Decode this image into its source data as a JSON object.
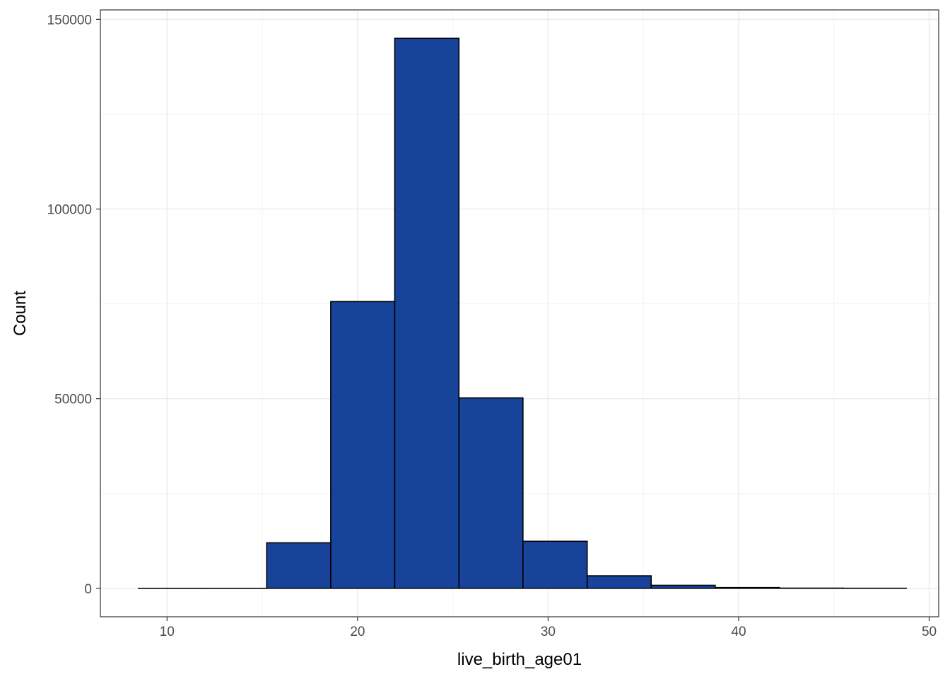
{
  "chart_data": {
    "type": "bar",
    "title": "",
    "xlabel": "live_birth_age01",
    "ylabel": "Count",
    "xlim": [
      6.5,
      50.5
    ],
    "ylim": [
      -7500,
      152500
    ],
    "x_ticks": [
      10,
      20,
      30,
      40,
      50
    ],
    "y_ticks": [
      0,
      50000,
      100000,
      150000
    ],
    "x_tick_labels": [
      "10",
      "20",
      "30",
      "40",
      "50"
    ],
    "y_tick_labels": [
      "0",
      "50000",
      "100000",
      "150000"
    ],
    "grid": true,
    "legend": "none",
    "fill_color": "#17439b",
    "edge_color": "#000000",
    "bins": [
      {
        "x0": 8.5,
        "x1": 11.86,
        "count": 0
      },
      {
        "x0": 11.86,
        "x1": 15.23,
        "count": 0
      },
      {
        "x0": 15.23,
        "x1": 18.59,
        "count": 12000
      },
      {
        "x0": 18.59,
        "x1": 21.95,
        "count": 75600
      },
      {
        "x0": 21.95,
        "x1": 25.32,
        "count": 145000
      },
      {
        "x0": 25.32,
        "x1": 28.68,
        "count": 50200
      },
      {
        "x0": 28.68,
        "x1": 32.05,
        "count": 12400
      },
      {
        "x0": 32.05,
        "x1": 35.41,
        "count": 3300
      },
      {
        "x0": 35.41,
        "x1": 38.77,
        "count": 800
      },
      {
        "x0": 38.77,
        "x1": 42.14,
        "count": 200
      },
      {
        "x0": 42.14,
        "x1": 45.5,
        "count": 50
      },
      {
        "x0": 45.5,
        "x1": 48.8,
        "count": 20
      }
    ]
  }
}
